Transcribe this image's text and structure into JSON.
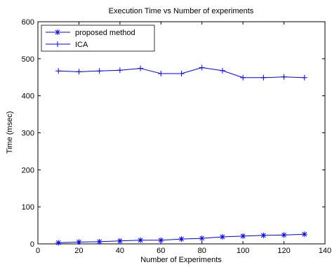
{
  "chart_data": {
    "type": "line",
    "title": "Execution Time vs Number of experiments",
    "xlabel": "Number of Experiments",
    "ylabel": "Time (msec)",
    "xlim": [
      0,
      140
    ],
    "ylim": [
      0,
      600
    ],
    "xticks": [
      "0",
      "20",
      "40",
      "60",
      "80",
      "100",
      "120",
      "140"
    ],
    "yticks": [
      "0",
      "100",
      "200",
      "300",
      "400",
      "500",
      "600"
    ],
    "grid": false,
    "legend_position": "top-left",
    "color": "#0000ff",
    "x": [
      10,
      20,
      30,
      40,
      50,
      60,
      70,
      80,
      90,
      100,
      110,
      120,
      130
    ],
    "series": [
      {
        "name": "proposed method",
        "marker": "asterisk",
        "values": [
          3,
          5,
          6,
          8,
          10,
          10,
          13,
          15,
          19,
          21,
          23,
          24,
          26
        ]
      },
      {
        "name": "ICA",
        "marker": "plus",
        "values": [
          467,
          465,
          467,
          469,
          474,
          460,
          460,
          476,
          468,
          449,
          449,
          451,
          449
        ]
      }
    ]
  }
}
